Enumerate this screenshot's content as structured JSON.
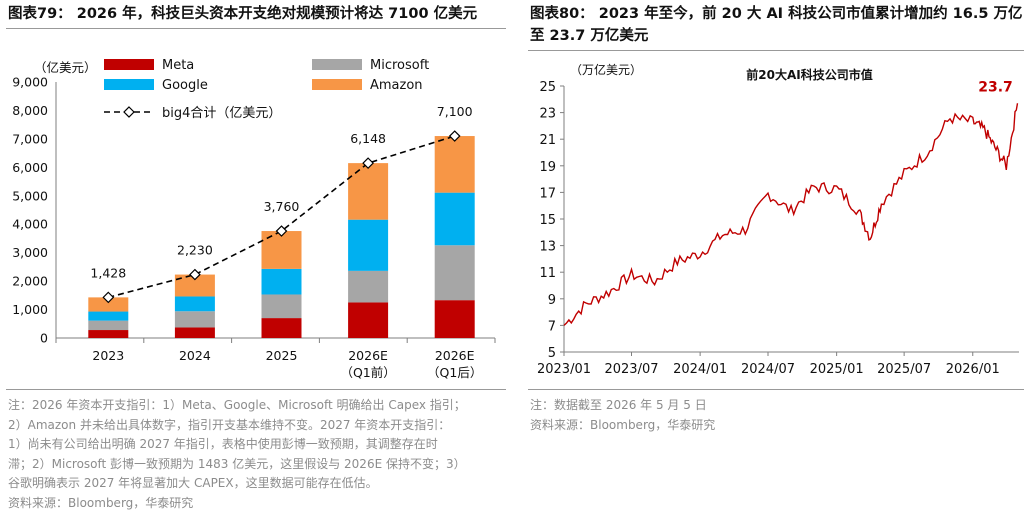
{
  "left": {
    "title": "图表79：  2026 年，科技巨头资本开支绝对规模预计将达 7100 亿美元",
    "notes": [
      "注：2026 年资本开支指引：1）Meta、Google、Microsoft 明确给出 Capex 指引；",
      "2）Amazon 并未给出具体数字，指引开支基本维持不变。2027 年资本开支指引：",
      "1）尚未有公司给出明确 2027 年指引，表格中使用彭博一致预期，其调整存在时",
      "滞；2）Microsoft 彭博一致预期为 1483 亿美元，这里假设与 2026E 保持不变；3）",
      "谷歌明确表示 2027 年将显著加大 CAPEX，这里数据可能存在低估。"
    ],
    "source": "资料来源：Bloomberg，华泰研究"
  },
  "right": {
    "title": "图表80：  2023 年至今，前 20 大 AI 科技公司市值累计增加约 16.5 万亿至 23.7 万亿美元",
    "notes": [
      "注：数据截至 2026 年 5 月 5 日",
      "资料来源：Bloomberg，华泰研究"
    ]
  },
  "chart_data": [
    {
      "type": "bar",
      "stacked": true,
      "unit_label": "（亿美元）",
      "categories": [
        "2023",
        "2024",
        "2025",
        "2026E\n（Q1前）",
        "2026E\n（Q1后）"
      ],
      "series": [
        {
          "name": "Meta",
          "color": "#c00000",
          "values": [
            280,
            370,
            700,
            1250,
            1330
          ]
        },
        {
          "name": "Microsoft",
          "color": "#a6a6a6",
          "values": [
            330,
            570,
            830,
            1110,
            1930
          ]
        },
        {
          "name": "Google",
          "color": "#00b0f0",
          "values": [
            320,
            520,
            900,
            1800,
            1850
          ]
        },
        {
          "name": "Amazon",
          "color": "#f79646",
          "values": [
            498,
            770,
            1330,
            1988,
            1990
          ]
        }
      ],
      "total_series": {
        "name": "big4合计（亿美元）",
        "values": [
          1428,
          2230,
          3760,
          6148,
          7100
        ],
        "labels": [
          "1,428",
          "2,230",
          "3,760",
          "6,148",
          "7,100"
        ]
      },
      "ylim": [
        0,
        9000
      ],
      "yticks": [
        0,
        1000,
        2000,
        3000,
        4000,
        5000,
        6000,
        7000,
        8000,
        9000
      ],
      "ytick_labels": [
        "0",
        "1,000",
        "2,000",
        "3,000",
        "4,000",
        "5,000",
        "6,000",
        "7,000",
        "8,000",
        "9,000"
      ],
      "legend_position": "top"
    },
    {
      "type": "line",
      "title": "前20大AI科技公司市值",
      "unit_label": "（万亿美元）",
      "series": [
        {
          "color": "#c00000",
          "x": [
            "2023-01",
            "2023-03",
            "2023-05",
            "2023-07",
            "2023-09",
            "2023-11",
            "2024-01",
            "2024-03",
            "2024-05",
            "2024-07",
            "2024-09",
            "2024-11",
            "2025-01",
            "2025-03",
            "2025-04",
            "2025-05",
            "2025-07",
            "2025-09",
            "2025-11",
            "2026-01",
            "2026-02",
            "2026-03",
            "2026-04",
            "2026-05"
          ],
          "y": [
            7.0,
            8.6,
            9.5,
            10.8,
            10.3,
            11.8,
            12.4,
            13.8,
            14.2,
            16.9,
            15.6,
            17.4,
            17.3,
            15.6,
            13.6,
            16.2,
            18.4,
            20.0,
            22.6,
            22.3,
            21.7,
            20.4,
            19.0,
            23.7
          ]
        }
      ],
      "end_label": "23.7",
      "ylim": [
        5,
        25
      ],
      "yticks": [
        "5",
        "7",
        "9",
        "11",
        "13",
        "15",
        "17",
        "19",
        "21",
        "23",
        "25"
      ],
      "xtick_labels": [
        "2023/01",
        "2023/07",
        "2024/01",
        "2024/07",
        "2025/01",
        "2025/07",
        "2026/01"
      ]
    }
  ]
}
